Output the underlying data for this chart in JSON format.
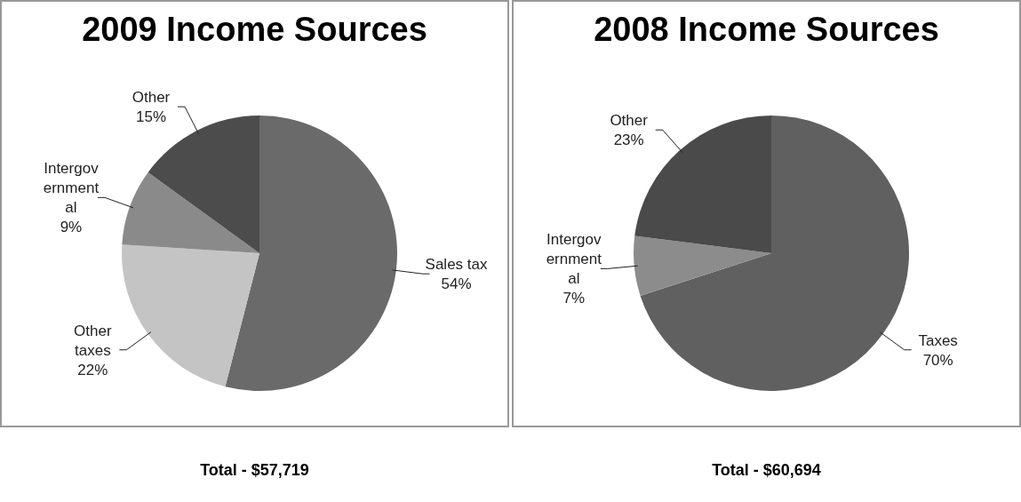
{
  "chart_data": [
    {
      "type": "pie",
      "title": "2009 Income Sources",
      "categories": [
        "Sales tax",
        "Other taxes",
        "Intergovernmental",
        "Other"
      ],
      "values": [
        54,
        22,
        9,
        15
      ],
      "value_labels": [
        "54%",
        "22%",
        "9%",
        "15%"
      ],
      "colors": [
        "#6a6a6a",
        "#c4c4c4",
        "#8a8a8a",
        "#4c4c4c"
      ],
      "annotations": [
        "Total - $57,719"
      ]
    },
    {
      "type": "pie",
      "title": "2008 Income Sources",
      "categories": [
        "Taxes",
        "Intergovernmental",
        "Other"
      ],
      "values": [
        70,
        7,
        23
      ],
      "value_labels": [
        "70%",
        "7%",
        "23%"
      ],
      "colors": [
        "#606060",
        "#8c8c8c",
        "#4a4a4a"
      ],
      "annotations": [
        "Total - $60,694"
      ]
    }
  ]
}
